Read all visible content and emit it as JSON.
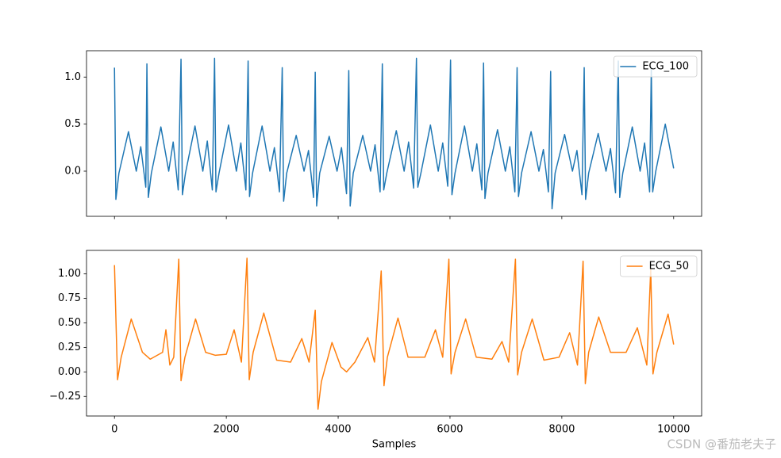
{
  "chart_data": [
    {
      "type": "line",
      "x": [
        0,
        25,
        80,
        250,
        390,
        470,
        560,
        580,
        605,
        660,
        830,
        970,
        1050,
        1140,
        1190,
        1215,
        1270,
        1440,
        1580,
        1660,
        1750,
        1790,
        1815,
        1870,
        2040,
        2180,
        2260,
        2350,
        2390,
        2415,
        2470,
        2640,
        2780,
        2860,
        2950,
        3000,
        3025,
        3080,
        3250,
        3390,
        3470,
        3560,
        3590,
        3615,
        3670,
        3840,
        3980,
        4060,
        4150,
        4190,
        4215,
        4270,
        4440,
        4580,
        4660,
        4750,
        4790,
        4815,
        4870,
        5040,
        5180,
        5260,
        5350,
        5400,
        5425,
        5480,
        5650,
        5790,
        5870,
        5960,
        6010,
        6035,
        6090,
        6260,
        6400,
        6480,
        6570,
        6600,
        6625,
        6680,
        6850,
        6990,
        7070,
        7160,
        7200,
        7225,
        7280,
        7450,
        7590,
        7670,
        7760,
        7800,
        7825,
        7880,
        8050,
        8190,
        8270,
        8360,
        8400,
        8425,
        8480,
        8650,
        8790,
        8870,
        8960,
        9010,
        9035,
        9090,
        9260,
        9400,
        9480,
        9570,
        9600,
        9625,
        9680,
        9850,
        10000
      ],
      "series": [
        {
          "name": "ECG_100",
          "color": "#1f77b4",
          "values": [
            1.1,
            -0.3,
            -0.02,
            0.42,
            0.0,
            0.26,
            -0.17,
            1.14,
            -0.28,
            -0.02,
            0.47,
            0.0,
            0.31,
            -0.2,
            1.19,
            -0.25,
            -0.02,
            0.48,
            0.0,
            0.32,
            -0.2,
            1.2,
            -0.22,
            -0.02,
            0.49,
            0.0,
            0.3,
            -0.2,
            1.17,
            -0.27,
            -0.02,
            0.48,
            0.0,
            0.25,
            -0.22,
            1.1,
            -0.32,
            -0.02,
            0.38,
            0.0,
            0.22,
            -0.28,
            1.05,
            -0.37,
            -0.02,
            0.37,
            0.0,
            0.25,
            -0.24,
            1.07,
            -0.37,
            -0.02,
            0.38,
            0.0,
            0.28,
            -0.22,
            1.14,
            -0.2,
            -0.02,
            0.43,
            0.0,
            0.31,
            -0.18,
            1.2,
            -0.17,
            -0.02,
            0.49,
            0.0,
            0.3,
            -0.16,
            1.18,
            -0.25,
            -0.02,
            0.48,
            0.0,
            0.29,
            -0.2,
            1.15,
            -0.29,
            -0.02,
            0.44,
            0.0,
            0.26,
            -0.22,
            1.1,
            -0.27,
            -0.02,
            0.42,
            0.0,
            0.23,
            -0.22,
            1.06,
            -0.4,
            -0.02,
            0.39,
            0.0,
            0.22,
            -0.25,
            1.1,
            -0.3,
            -0.02,
            0.4,
            0.0,
            0.24,
            -0.23,
            1.17,
            -0.28,
            -0.02,
            0.47,
            0.0,
            0.3,
            -0.22,
            1.1,
            -0.22,
            0.0,
            0.5,
            0.03
          ]
        }
      ],
      "xlim": [
        -500,
        10500
      ],
      "ylim": [
        -0.48,
        1.28
      ],
      "yticks": [
        {
          "value": 0,
          "label": "0.0"
        },
        0.5,
        {
          "value": 1,
          "label": "1.0"
        }
      ],
      "legend": "upper right"
    },
    {
      "type": "line",
      "x": [
        0,
        55,
        120,
        300,
        500,
        640,
        860,
        920,
        990,
        1060,
        1150,
        1190,
        1260,
        1450,
        1630,
        1800,
        2000,
        2140,
        2270,
        2370,
        2410,
        2480,
        2670,
        2900,
        3150,
        3350,
        3480,
        3590,
        3640,
        3700,
        3890,
        4050,
        4150,
        4300,
        4530,
        4650,
        4770,
        4820,
        4880,
        5070,
        5250,
        5550,
        5740,
        5870,
        5980,
        6020,
        6090,
        6280,
        6470,
        6750,
        6930,
        7050,
        7170,
        7210,
        7280,
        7470,
        7680,
        7950,
        8140,
        8280,
        8380,
        8420,
        8480,
        8660,
        8870,
        9150,
        9350,
        9520,
        9590,
        9630,
        9700,
        9900,
        10000
      ],
      "series": [
        {
          "name": "ECG_50",
          "color": "#ff7f0e",
          "values": [
            1.09,
            -0.08,
            0.15,
            0.54,
            0.2,
            0.13,
            0.2,
            0.43,
            0.07,
            0.15,
            1.15,
            -0.09,
            0.15,
            0.54,
            0.2,
            0.17,
            0.18,
            0.43,
            0.1,
            1.16,
            -0.08,
            0.2,
            0.6,
            0.12,
            0.1,
            0.34,
            0.1,
            0.63,
            -0.38,
            -0.1,
            0.3,
            0.05,
            0.0,
            0.1,
            0.35,
            0.1,
            1.03,
            -0.14,
            0.15,
            0.55,
            0.15,
            0.15,
            0.43,
            0.15,
            1.15,
            -0.02,
            0.2,
            0.54,
            0.15,
            0.13,
            0.31,
            0.1,
            1.15,
            -0.03,
            0.2,
            0.54,
            0.12,
            0.15,
            0.4,
            0.07,
            1.13,
            -0.12,
            0.2,
            0.56,
            0.2,
            0.2,
            0.45,
            0.07,
            1.05,
            -0.02,
            0.2,
            0.59,
            0.28
          ]
        }
      ],
      "xlim": [
        -500,
        10500
      ],
      "ylim": [
        -0.45,
        1.24
      ],
      "xticks": [
        0,
        2000,
        4000,
        6000,
        8000,
        10000
      ],
      "yticks": [
        {
          "value": -0.25,
          "label": "−0.25"
        },
        {
          "value": 0,
          "label": "0.00"
        },
        0.25,
        {
          "value": 0.5,
          "label": "0.50"
        },
        0.75,
        {
          "value": 1,
          "label": "1.00"
        }
      ],
      "xlabel": "Samples",
      "legend": "upper right"
    }
  ],
  "watermark": "CSDN @番茄老夫子"
}
